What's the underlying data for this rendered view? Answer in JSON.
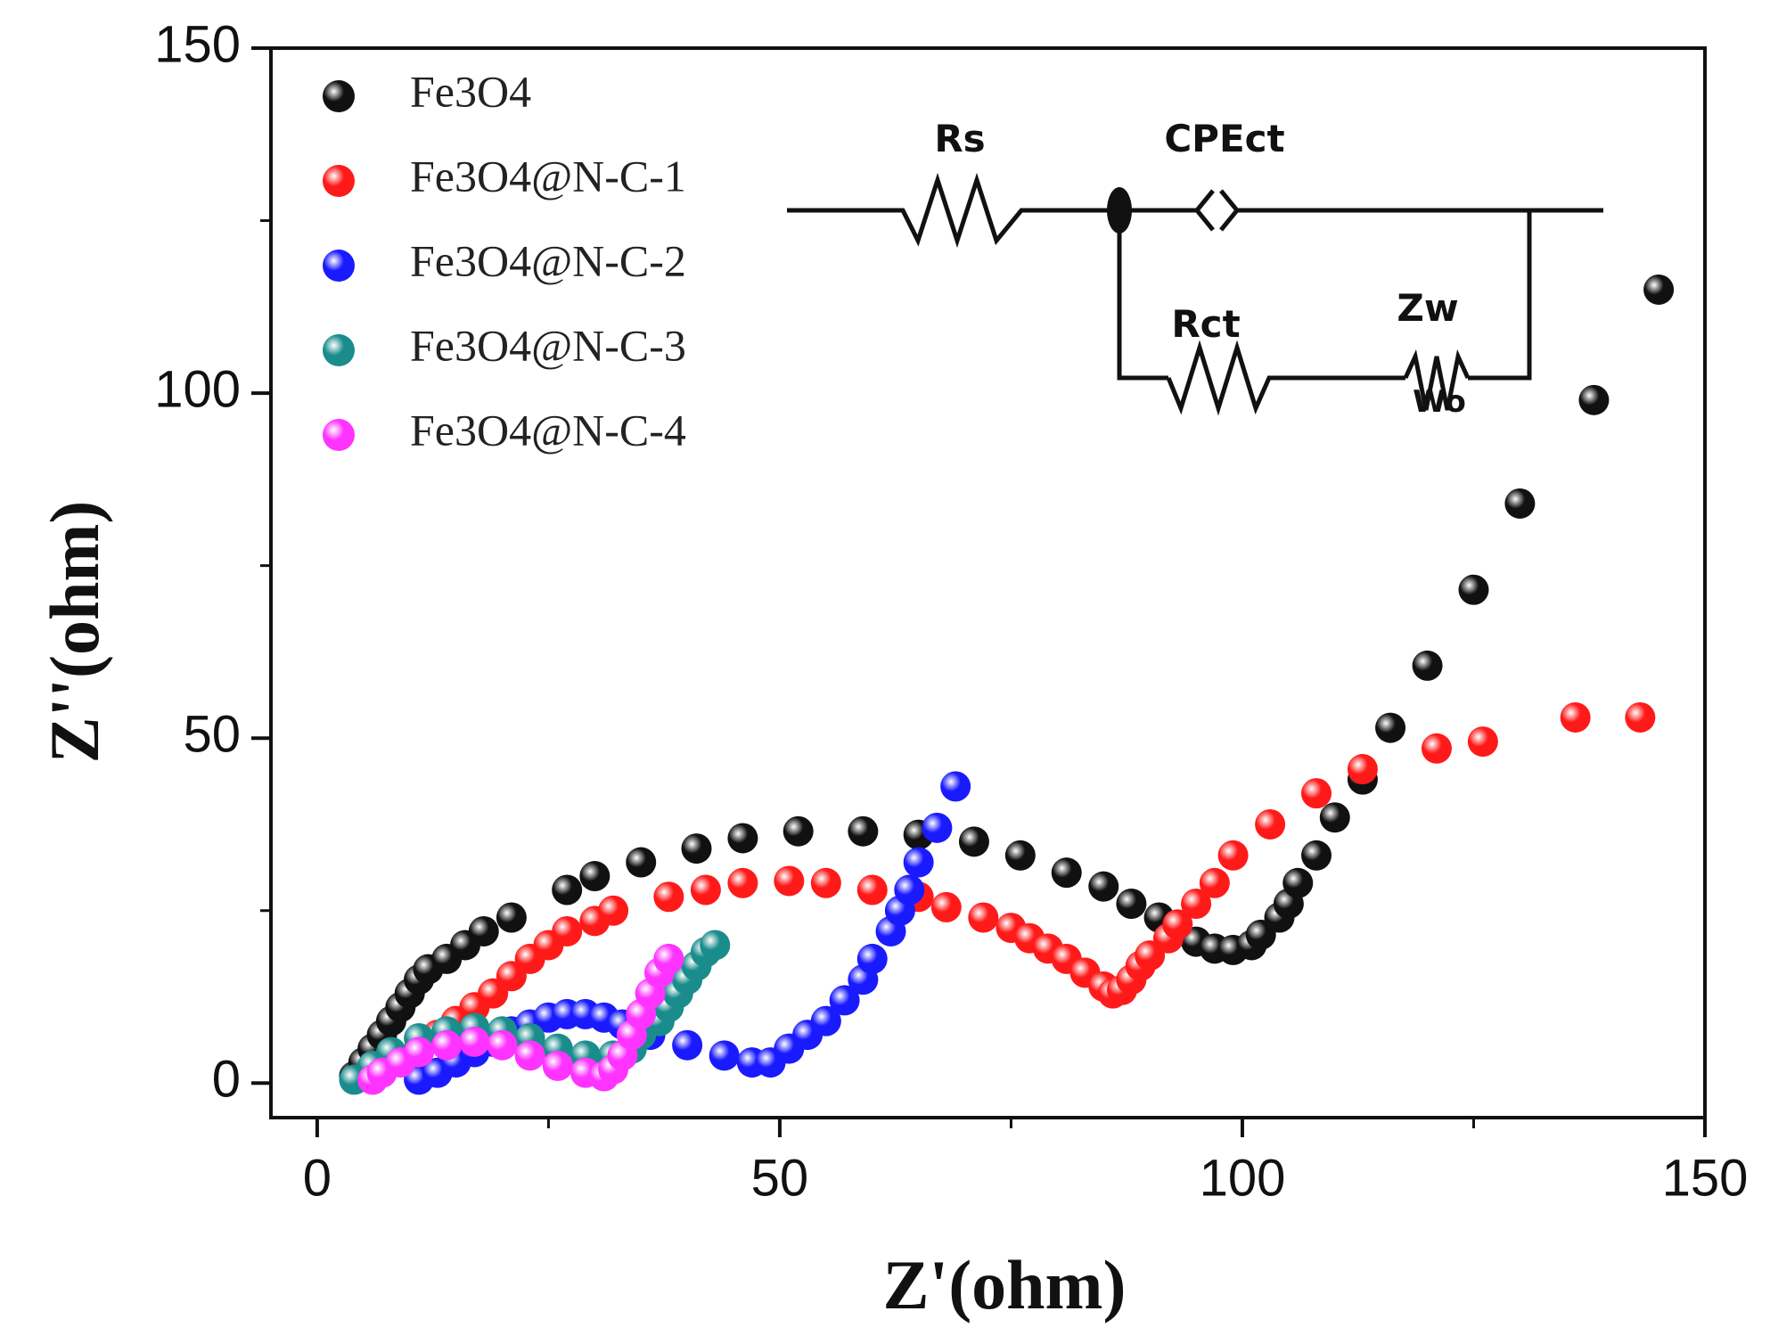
{
  "chart_data": {
    "type": "scatter",
    "xlabel": "Z'(ohm)",
    "ylabel": "Z''(ohm)",
    "xlim": [
      -5,
      150
    ],
    "ylim": [
      -5,
      150
    ],
    "xticks": [
      0,
      50,
      100,
      150
    ],
    "yticks": [
      0,
      50,
      100,
      150
    ],
    "xminorticks": [
      25,
      75,
      125
    ],
    "yminorticks": [
      25,
      75,
      125
    ],
    "legend": "upper left",
    "annotations": [
      "Rs",
      "CPEct",
      "Rct",
      "Zw",
      "Wo"
    ],
    "series": [
      {
        "name": "Fe3O4",
        "color": "#111111",
        "x": [
          4,
          5,
          6,
          7,
          8,
          9,
          10,
          11,
          12,
          14,
          16,
          18,
          21,
          27,
          30,
          35,
          41,
          46,
          52,
          59,
          65,
          71,
          76,
          81,
          85,
          88,
          91,
          93,
          95,
          97,
          99,
          101,
          102,
          104,
          105,
          106,
          108,
          110,
          113,
          116,
          120,
          125,
          130,
          138,
          145
        ],
        "values": [
          1,
          3,
          5,
          7,
          9,
          11,
          13,
          15,
          16.5,
          18,
          20,
          22,
          24,
          28,
          30,
          32,
          34,
          35.5,
          36.5,
          36.5,
          36,
          35,
          33,
          30.5,
          28.5,
          26,
          24,
          22,
          20.5,
          19.5,
          19.3,
          20,
          21.5,
          24,
          26,
          29,
          33,
          38.5,
          44,
          51.5,
          60.5,
          71.5,
          84,
          99,
          115
        ]
      },
      {
        "name": "Fe3O4@N-C-1",
        "color": "#ff1a1a",
        "x": [
          10,
          11,
          13,
          15,
          17,
          19,
          21,
          23,
          25,
          27,
          30,
          32,
          38,
          42,
          46,
          51,
          55,
          60,
          65,
          68,
          72,
          75,
          77,
          79,
          81,
          83,
          85,
          86,
          87,
          88,
          89,
          90,
          92,
          93,
          95,
          97,
          99,
          103,
          108,
          113,
          121,
          126,
          136,
          143
        ],
        "values": [
          3,
          5,
          7,
          9,
          11,
          13,
          15.5,
          18,
          20,
          22,
          23.5,
          25,
          27,
          28,
          29,
          29.3,
          29,
          28,
          27,
          25.5,
          24,
          22.5,
          21,
          19.5,
          18,
          16,
          14,
          13,
          13.5,
          15,
          17,
          18.5,
          21,
          23,
          26,
          29,
          33,
          37.5,
          42,
          45.5,
          48.5,
          49.5,
          53,
          53
        ]
      },
      {
        "name": "Fe3O4@N-C-2",
        "color": "#1a1aff",
        "x": [
          11,
          13,
          15,
          17,
          19,
          21,
          23,
          25,
          27,
          29,
          31,
          33,
          36,
          40,
          44,
          47,
          49,
          51,
          53,
          55,
          57,
          59,
          60,
          62,
          63,
          64,
          65,
          67,
          69
        ],
        "values": [
          0.5,
          1.5,
          3,
          4.5,
          6,
          7.5,
          8.5,
          9.5,
          10,
          10,
          9.5,
          8.5,
          7,
          5.5,
          4,
          3,
          3,
          5,
          7,
          9,
          12,
          15,
          18,
          22,
          25,
          28,
          32,
          37,
          43
        ]
      },
      {
        "name": "Fe3O4@N-C-3",
        "color": "#1a8c8c",
        "x": [
          4,
          6,
          8,
          11,
          14,
          17,
          20,
          23,
          26,
          29,
          32,
          34,
          35,
          37,
          38,
          39,
          40,
          41,
          42,
          43
        ],
        "values": [
          0.5,
          2.5,
          4.5,
          6.5,
          7.5,
          8,
          7.5,
          6.5,
          5,
          4,
          4,
          5,
          7,
          9,
          11,
          13,
          15,
          17,
          19,
          20
        ]
      },
      {
        "name": "Fe3O4@N-C-4",
        "color": "#ff33ff",
        "x": [
          6,
          7,
          9,
          11,
          14,
          17,
          20,
          23,
          26,
          29,
          31,
          32,
          33,
          34,
          35,
          36,
          37,
          38
        ],
        "values": [
          0.5,
          1.5,
          3,
          4.5,
          5.5,
          6,
          5.5,
          4,
          2.5,
          1.5,
          1,
          2,
          4,
          7,
          10,
          13,
          16,
          18
        ]
      }
    ]
  }
}
